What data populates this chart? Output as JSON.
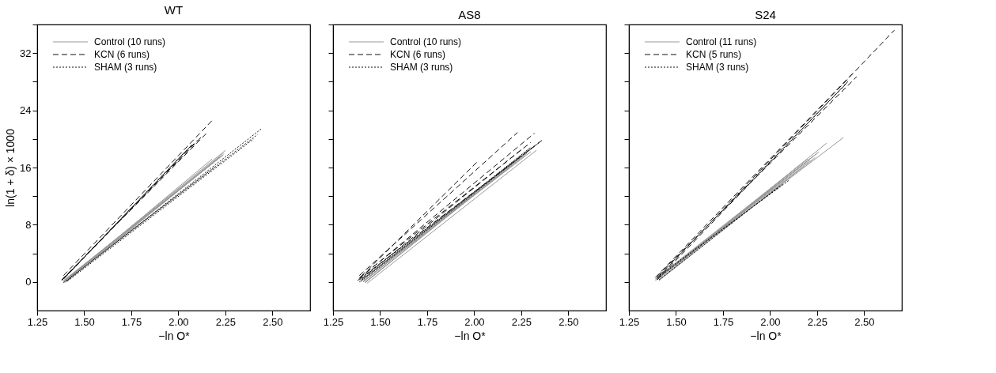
{
  "chart_data": [
    {
      "type": "line",
      "title": "WT",
      "xlabel": "−ln O*",
      "ylabel": "ln(1 + δ) × 1000",
      "xlim": [
        1.25,
        2.7
      ],
      "ylim": [
        -4,
        36
      ],
      "xticks": [
        {
          "value": 1.25,
          "label": "1.25"
        },
        {
          "value": 1.5,
          "label": "1.50"
        },
        {
          "value": 1.75,
          "label": "1.75"
        },
        {
          "value": 2.0,
          "label": "2.00"
        },
        {
          "value": 2.25,
          "label": "2.25"
        },
        {
          "value": 2.5,
          "label": "2.50"
        }
      ],
      "yticks": [
        0,
        {
          "value": 4,
          "label": null
        },
        8,
        {
          "value": 12,
          "label": null
        },
        16,
        {
          "value": 20,
          "label": null
        },
        24,
        {
          "value": 28,
          "label": null
        },
        32,
        {
          "value": 36,
          "label": null
        }
      ],
      "grid": false,
      "legend": "top left",
      "series": [
        {
          "name": "Control (10 runs)",
          "color": "#999999",
          "line_style": "solid",
          "x": [
            1.39,
            2.25
          ],
          "values": [
            0.1,
            18.4
          ]
        },
        {
          "color": "#999999",
          "line_style": "solid",
          "x": [
            1.4,
            2.24
          ],
          "values": [
            0.2,
            17.8
          ]
        },
        {
          "color": "#999999",
          "line_style": "solid",
          "x": [
            1.39,
            2.22
          ],
          "values": [
            0.0,
            17.5
          ]
        },
        {
          "color": "#999999",
          "line_style": "solid",
          "x": [
            1.41,
            2.2
          ],
          "values": [
            0.3,
            16.2
          ]
        },
        {
          "color": "#999999",
          "line_style": "solid",
          "x": [
            1.4,
            2.18
          ],
          "values": [
            0.1,
            17.2
          ]
        },
        {
          "color": "#999999",
          "line_style": "solid",
          "x": [
            1.39,
            2.23
          ],
          "values": [
            0.2,
            17.6
          ]
        },
        {
          "color": "#999999",
          "line_style": "solid",
          "x": [
            1.4,
            2.21
          ],
          "values": [
            0.0,
            17.2
          ]
        },
        {
          "color": "#999999",
          "line_style": "solid",
          "x": [
            1.41,
            2.19
          ],
          "values": [
            0.2,
            16.8
          ]
        },
        {
          "color": "#999999",
          "line_style": "solid",
          "x": [
            1.39,
            2.17
          ],
          "values": [
            0.1,
            15.6
          ]
        },
        {
          "color": "#999999",
          "line_style": "solid",
          "x": [
            1.4,
            2.24
          ],
          "values": [
            0.3,
            18.0
          ]
        },
        {
          "name": "KCN (6 runs)",
          "color": "#111111",
          "line_style": "dashed",
          "x": [
            1.39,
            2.18
          ],
          "values": [
            0.9,
            22.6
          ]
        },
        {
          "color": "#111111",
          "line_style": "dashed",
          "x": [
            1.38,
            2.15
          ],
          "values": [
            0.3,
            20.8
          ]
        },
        {
          "color": "#111111",
          "line_style": "dashed",
          "x": [
            1.39,
            2.12
          ],
          "values": [
            0.5,
            20.2
          ]
        },
        {
          "color": "#111111",
          "line_style": "dashed",
          "x": [
            1.38,
            2.08
          ],
          "values": [
            0.2,
            19.4
          ]
        },
        {
          "color": "#111111",
          "line_style": "dashed",
          "x": [
            1.4,
            2.05
          ],
          "values": [
            0.7,
            18.6
          ]
        },
        {
          "color": "#111111",
          "line_style": "dashed",
          "x": [
            1.39,
            2.1
          ],
          "values": [
            0.4,
            19.8
          ]
        },
        {
          "name": "SHAM (3 runs)",
          "color": "#111111",
          "line_style": "dotted",
          "x": [
            1.4,
            2.44
          ],
          "values": [
            0.0,
            21.4
          ]
        },
        {
          "color": "#111111",
          "line_style": "dotted",
          "x": [
            1.39,
            2.42
          ],
          "values": [
            -0.1,
            20.6
          ]
        },
        {
          "color": "#111111",
          "line_style": "dotted",
          "x": [
            1.41,
            2.4
          ],
          "values": [
            0.1,
            20.0
          ]
        }
      ]
    },
    {
      "type": "line",
      "title": "AS8",
      "xlabel": "−ln O*",
      "xlim": [
        1.25,
        2.7
      ],
      "ylim": [
        -4,
        36
      ],
      "tick_labels": "x",
      "xticks": [
        {
          "value": 1.25,
          "label": "1.25"
        },
        {
          "value": 1.5,
          "label": "1.50"
        },
        {
          "value": 1.75,
          "label": "1.75"
        },
        {
          "value": 2.0,
          "label": "2.00"
        },
        {
          "value": 2.25,
          "label": "2.25"
        },
        {
          "value": 2.5,
          "label": "2.50"
        }
      ],
      "yticks": [
        0,
        {
          "value": 4,
          "label": null
        },
        8,
        {
          "value": 12,
          "label": null
        },
        16,
        {
          "value": 20,
          "label": null
        },
        24,
        {
          "value": 28,
          "label": null
        },
        32,
        {
          "value": 36,
          "label": null
        }
      ],
      "grid": false,
      "legend": "top left",
      "series": [
        {
          "name": "Control (10 runs)",
          "color": "#999999",
          "line_style": "solid",
          "x": [
            1.42,
            2.35
          ],
          "values": [
            -0.1,
            19.6
          ]
        },
        {
          "color": "#999999",
          "line_style": "solid",
          "x": [
            1.43,
            2.33
          ],
          "values": [
            -0.2,
            18.4
          ]
        },
        {
          "color": "#999999",
          "line_style": "solid",
          "x": [
            1.41,
            2.3
          ],
          "values": [
            0.1,
            18.8
          ]
        },
        {
          "color": "#999999",
          "line_style": "solid",
          "x": [
            1.42,
            2.28
          ],
          "values": [
            0.0,
            18.0
          ]
        },
        {
          "color": "#999999",
          "line_style": "solid",
          "x": [
            1.4,
            2.25
          ],
          "values": [
            0.2,
            17.5
          ]
        },
        {
          "color": "#999999",
          "line_style": "solid",
          "x": [
            1.41,
            2.22
          ],
          "values": [
            0.0,
            17.0
          ]
        },
        {
          "color": "#999999",
          "line_style": "solid",
          "x": [
            1.4,
            2.32
          ],
          "values": [
            0.3,
            19.0
          ]
        },
        {
          "color": "#999999",
          "line_style": "solid",
          "x": [
            1.42,
            2.2
          ],
          "values": [
            -0.1,
            16.6
          ]
        },
        {
          "color": "#999999",
          "line_style": "solid",
          "x": [
            1.41,
            2.27
          ],
          "values": [
            0.1,
            17.6
          ]
        },
        {
          "color": "#999999",
          "line_style": "solid",
          "x": [
            1.4,
            2.3
          ],
          "values": [
            0.2,
            18.2
          ]
        },
        {
          "name": "KCN (6 runs)",
          "color": "#111111",
          "line_style": "dashed",
          "x": [
            1.39,
            2.23
          ],
          "values": [
            0.9,
            20.9
          ]
        },
        {
          "color": "#111111",
          "line_style": "dashed",
          "x": [
            1.39,
            2.32
          ],
          "values": [
            0.5,
            20.8
          ]
        },
        {
          "color": "#111111",
          "line_style": "dashed",
          "x": [
            1.4,
            2.02
          ],
          "values": [
            0.8,
            16.9
          ]
        },
        {
          "color": "#111111",
          "line_style": "dashed",
          "x": [
            1.38,
            2.36
          ],
          "values": [
            0.2,
            19.8
          ]
        },
        {
          "color": "#111111",
          "line_style": "dashed",
          "x": [
            1.39,
            2.3
          ],
          "values": [
            0.6,
            19.5
          ]
        },
        {
          "color": "#111111",
          "line_style": "dashed",
          "x": [
            1.4,
            2.25
          ],
          "values": [
            0.4,
            18.5
          ]
        },
        {
          "name": "SHAM (3 runs)",
          "color": "#111111",
          "line_style": "dotted",
          "x": [
            1.39,
            2.35
          ],
          "values": [
            0.3,
            19.6
          ]
        },
        {
          "color": "#111111",
          "line_style": "dotted",
          "x": [
            1.4,
            2.33
          ],
          "values": [
            0.1,
            19.2
          ]
        },
        {
          "color": "#111111",
          "line_style": "dotted",
          "x": [
            1.39,
            2.3
          ],
          "values": [
            0.0,
            18.8
          ]
        }
      ]
    },
    {
      "type": "line",
      "title": "S24",
      "xlabel": "−ln O*",
      "xlim": [
        1.25,
        2.7
      ],
      "ylim": [
        -4,
        36
      ],
      "tick_labels": "x",
      "xticks": [
        {
          "value": 1.25,
          "label": "1.25"
        },
        {
          "value": 1.5,
          "label": "1.50"
        },
        {
          "value": 1.75,
          "label": "1.75"
        },
        {
          "value": 2.0,
          "label": "2.00"
        },
        {
          "value": 2.25,
          "label": "2.25"
        },
        {
          "value": 2.5,
          "label": "2.50"
        }
      ],
      "yticks": [
        0,
        {
          "value": 4,
          "label": null
        },
        8,
        {
          "value": 12,
          "label": null
        },
        16,
        {
          "value": 20,
          "label": null
        },
        24,
        {
          "value": 28,
          "label": null
        },
        32,
        {
          "value": 36,
          "label": null
        }
      ],
      "grid": false,
      "legend": "top left",
      "series": [
        {
          "name": "Control (11 runs)",
          "color": "#999999",
          "line_style": "solid",
          "x": [
            1.4,
            2.39
          ],
          "values": [
            0.4,
            20.2
          ]
        },
        {
          "color": "#999999",
          "line_style": "solid",
          "x": [
            1.4,
            2.3
          ],
          "values": [
            0.3,
            19.4
          ]
        },
        {
          "color": "#999999",
          "line_style": "solid",
          "x": [
            1.41,
            2.22
          ],
          "values": [
            0.2,
            17.0
          ]
        },
        {
          "color": "#999999",
          "line_style": "solid",
          "x": [
            1.4,
            2.25
          ],
          "values": [
            0.5,
            18.0
          ]
        },
        {
          "color": "#999999",
          "line_style": "solid",
          "x": [
            1.39,
            2.2
          ],
          "values": [
            0.4,
            17.2
          ]
        },
        {
          "color": "#999999",
          "line_style": "solid",
          "x": [
            1.41,
            2.18
          ],
          "values": [
            0.3,
            16.6
          ]
        },
        {
          "color": "#999999",
          "line_style": "solid",
          "x": [
            1.4,
            2.26
          ],
          "values": [
            0.6,
            18.2
          ]
        },
        {
          "color": "#999999",
          "line_style": "solid",
          "x": [
            1.39,
            2.23
          ],
          "values": [
            0.2,
            17.6
          ]
        },
        {
          "color": "#999999",
          "line_style": "solid",
          "x": [
            1.4,
            2.21
          ],
          "values": [
            0.4,
            17.0
          ]
        },
        {
          "color": "#999999",
          "line_style": "solid",
          "x": [
            1.41,
            2.15
          ],
          "values": [
            0.3,
            16.2
          ]
        },
        {
          "color": "#999999",
          "line_style": "solid",
          "x": [
            1.4,
            2.24
          ],
          "values": [
            0.5,
            17.4
          ]
        },
        {
          "name": "KCN (5 runs)",
          "color": "#111111",
          "line_style": "dashed",
          "x": [
            1.4,
            2.66
          ],
          "values": [
            0.5,
            35.2
          ]
        },
        {
          "color": "#111111",
          "line_style": "dashed",
          "x": [
            1.4,
            2.46
          ],
          "values": [
            0.8,
            28.7
          ]
        },
        {
          "color": "#111111",
          "line_style": "dashed",
          "x": [
            1.39,
            2.44
          ],
          "values": [
            0.6,
            29.2
          ]
        },
        {
          "color": "#111111",
          "line_style": "dashed",
          "x": [
            1.41,
            2.4
          ],
          "values": [
            0.9,
            27.6
          ]
        },
        {
          "color": "#111111",
          "line_style": "dashed",
          "x": [
            1.4,
            2.42
          ],
          "values": [
            0.3,
            28.2
          ]
        },
        {
          "name": "SHAM (3 runs)",
          "color": "#111111",
          "line_style": "dotted",
          "x": [
            1.4,
            2.07
          ],
          "values": [
            0.5,
            13.7
          ]
        },
        {
          "color": "#111111",
          "line_style": "dotted",
          "x": [
            1.41,
            2.05
          ],
          "values": [
            0.3,
            13.4
          ]
        },
        {
          "color": "#111111",
          "line_style": "dotted",
          "x": [
            1.4,
            2.1
          ],
          "values": [
            0.7,
            14.2
          ]
        }
      ]
    }
  ]
}
